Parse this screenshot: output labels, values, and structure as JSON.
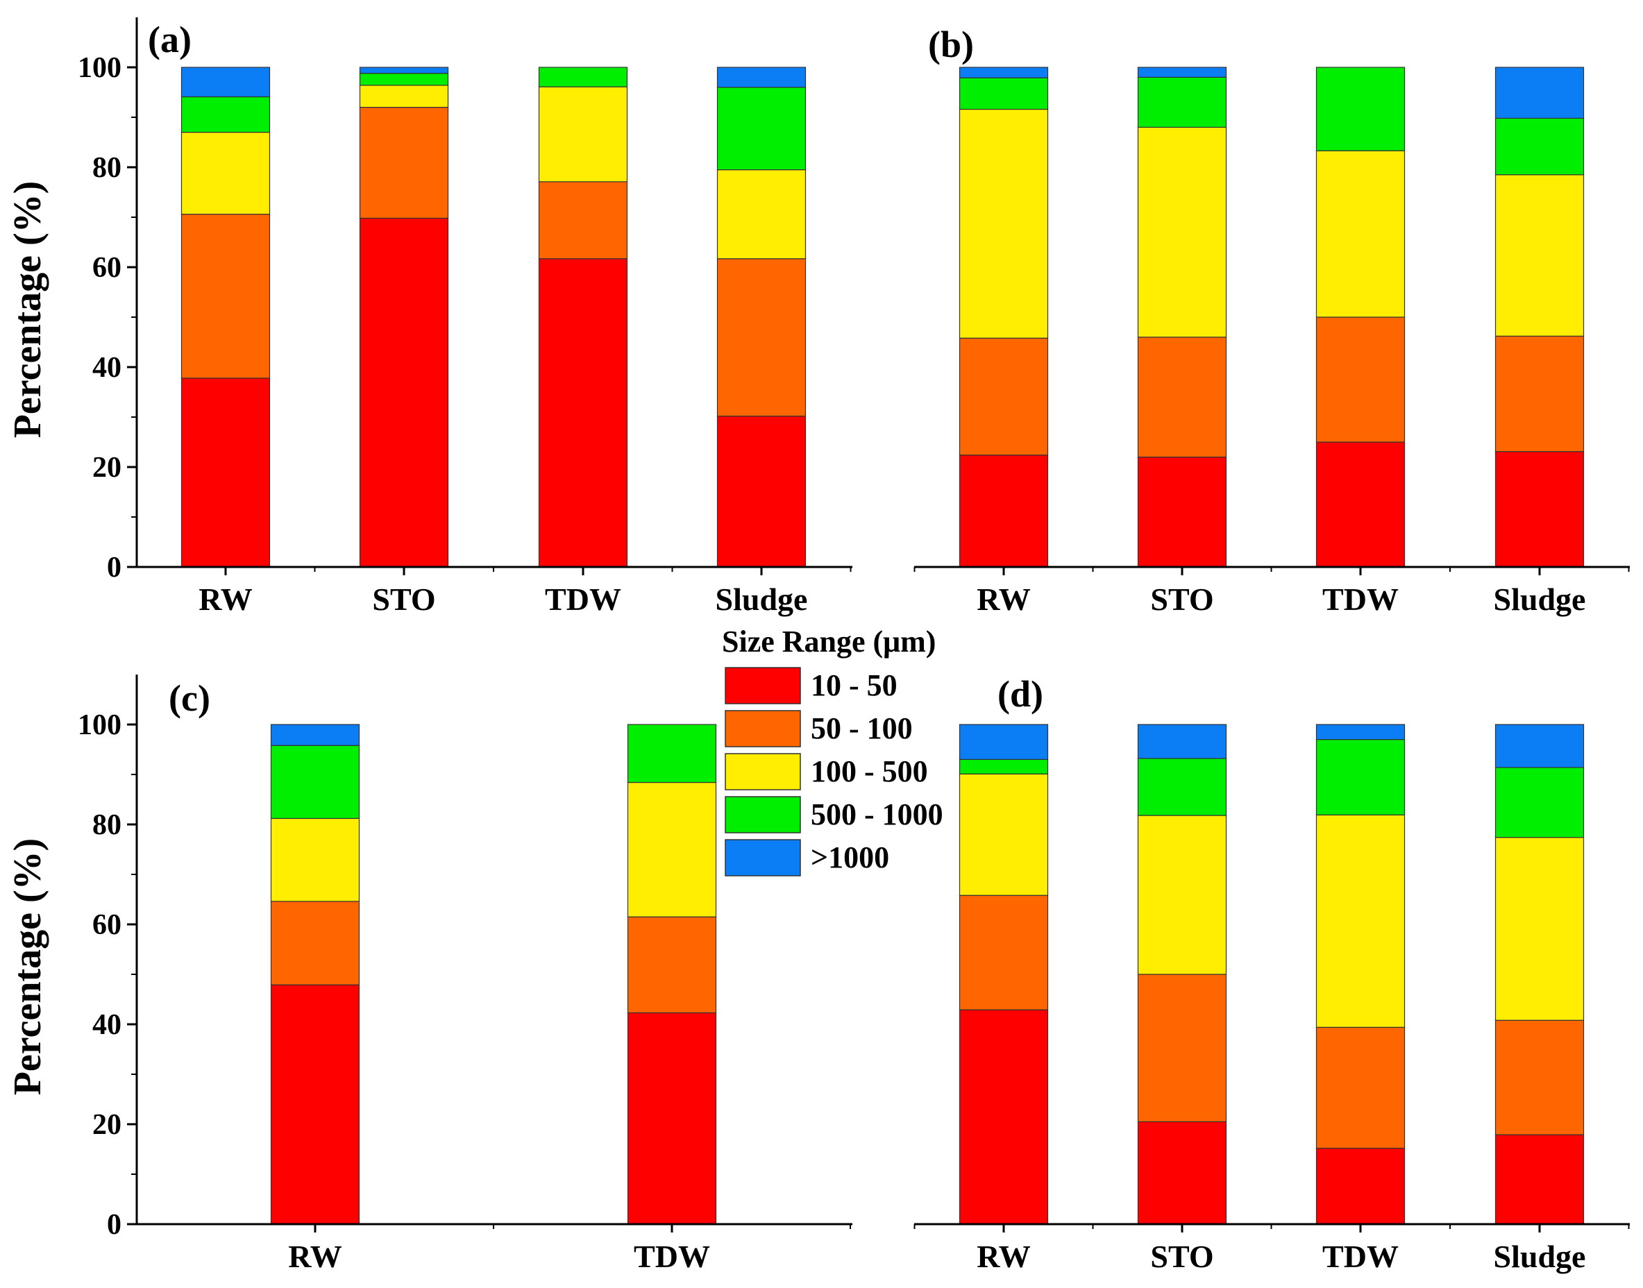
{
  "chart_data": [
    {
      "panel": "(a)",
      "type": "bar",
      "stacked": true,
      "ylabel": "Percentage (%)",
      "ylim": [
        0,
        110
      ],
      "yticks": [
        "0",
        "20",
        "40",
        "60",
        "80",
        "100"
      ],
      "categories": [
        "RW",
        "STO",
        "TDW",
        "Sludge"
      ],
      "series": [
        {
          "name": "10 - 50",
          "values": [
            37.8,
            69.8,
            61.7,
            30.2
          ]
        },
        {
          "name": "50 - 100",
          "values": [
            32.8,
            22.2,
            15.4,
            31.5
          ]
        },
        {
          "name": "100 - 500",
          "values": [
            16.4,
            4.4,
            19.0,
            17.8
          ]
        },
        {
          "name": "500 - 1000",
          "values": [
            7.1,
            2.4,
            3.9,
            16.5
          ]
        },
        {
          "name": ">1000",
          "values": [
            5.9,
            1.2,
            0.0,
            4.0
          ]
        }
      ]
    },
    {
      "panel": "(b)",
      "type": "bar",
      "stacked": true,
      "ylim": [
        0,
        110
      ],
      "categories": [
        "RW",
        "STO",
        "TDW",
        "Sludge"
      ],
      "series": [
        {
          "name": "10 - 50",
          "values": [
            22.4,
            22.0,
            25.0,
            23.1
          ]
        },
        {
          "name": "50 - 100",
          "values": [
            23.4,
            24.0,
            25.0,
            23.1
          ]
        },
        {
          "name": "100 - 500",
          "values": [
            45.8,
            42.0,
            33.3,
            32.3
          ]
        },
        {
          "name": "500 - 1000",
          "values": [
            6.3,
            10.0,
            16.7,
            11.3
          ]
        },
        {
          "name": ">1000",
          "values": [
            2.1,
            2.0,
            0.0,
            10.2
          ]
        }
      ]
    },
    {
      "panel": "(c)",
      "type": "bar",
      "stacked": true,
      "ylabel": "Percentage (%)",
      "ylim": [
        0,
        110
      ],
      "yticks": [
        "0",
        "20",
        "40",
        "60",
        "80",
        "100"
      ],
      "categories": [
        "RW",
        "TDW"
      ],
      "series": [
        {
          "name": "10 - 50",
          "values": [
            47.9,
            42.3
          ]
        },
        {
          "name": "50 - 100",
          "values": [
            16.7,
            19.2
          ]
        },
        {
          "name": "100 - 500",
          "values": [
            16.6,
            26.9
          ]
        },
        {
          "name": "500 - 1000",
          "values": [
            14.6,
            11.6
          ]
        },
        {
          "name": ">1000",
          "values": [
            4.2,
            0.0
          ]
        }
      ]
    },
    {
      "panel": "(d)",
      "type": "bar",
      "stacked": true,
      "ylim": [
        0,
        110
      ],
      "categories": [
        "RW",
        "STO",
        "TDW",
        "Sludge"
      ],
      "series": [
        {
          "name": "10 - 50",
          "values": [
            42.9,
            20.5,
            15.2,
            17.9
          ]
        },
        {
          "name": "50 - 100",
          "values": [
            22.9,
            29.5,
            24.2,
            22.9
          ]
        },
        {
          "name": "100 - 500",
          "values": [
            24.3,
            31.8,
            42.5,
            36.6
          ]
        },
        {
          "name": "500 - 1000",
          "values": [
            2.9,
            11.4,
            15.1,
            14.0
          ]
        },
        {
          "name": ">1000",
          "values": [
            7.0,
            6.8,
            3.0,
            8.6
          ]
        }
      ]
    }
  ],
  "legend": {
    "title": "Size Range (μm)",
    "items": [
      {
        "label": "10 - 50",
        "color": "#ff0000"
      },
      {
        "label": "50 - 100",
        "color": "#ff6600"
      },
      {
        "label": "100 - 500",
        "color": "#ffee00"
      },
      {
        "label": "500 - 1000",
        "color": "#00ee00"
      },
      {
        "label": ">1000",
        "color": "#0b7ef5"
      }
    ]
  }
}
